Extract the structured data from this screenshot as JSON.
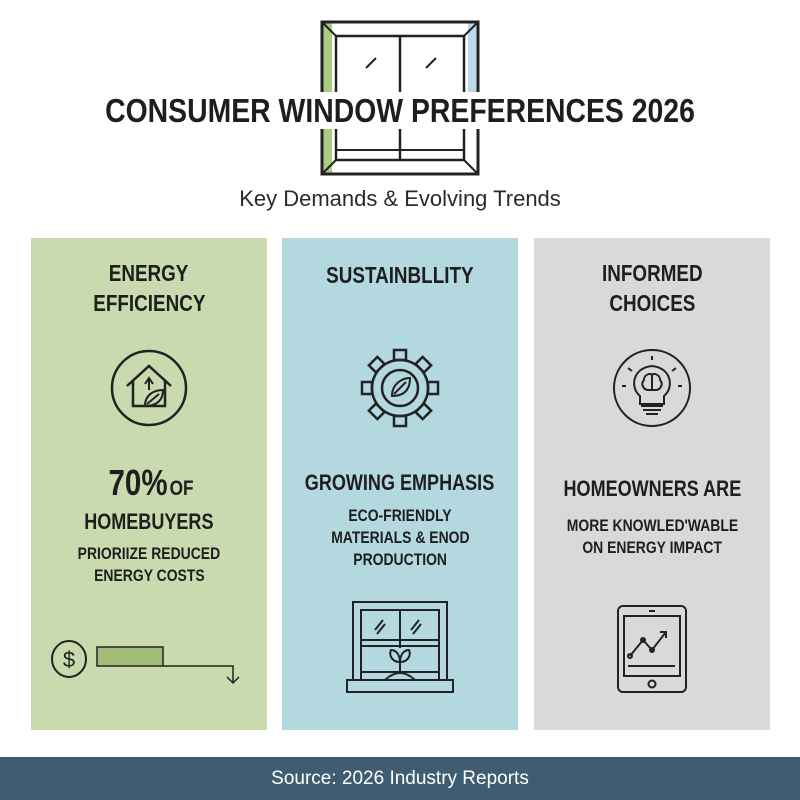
{
  "header": {
    "title": "CONSUMER WINDOW PREFERENCES 2026",
    "subtitle": "Key Demands & Evolving Trends"
  },
  "panels": [
    {
      "heading_lines": [
        "ENERGY",
        "EFFICIENCY"
      ],
      "icon": "house-leaf-icon",
      "stat": "70%",
      "stat_suffix": "OF",
      "line1": "HOMEBUYERS",
      "body_lines": [
        "PRIORIIZE REDUCED",
        "ENERGY COSTS"
      ],
      "bottom_icon": "dollar-cost-down-icon",
      "color": "#c9daae"
    },
    {
      "heading_lines": [
        "SUSTAINBLLITY"
      ],
      "icon": "gear-leaf-icon",
      "line1": "GROWING EMPHASIS",
      "body_lines": [
        "ECO-FRIENDLY",
        "MATERIALS & ENOD",
        "PRODUCTION"
      ],
      "bottom_icon": "window-plant-icon",
      "color": "#b3d8df"
    },
    {
      "heading_lines": [
        "INFORMED",
        "CHOICES"
      ],
      "icon": "lightbulb-brain-icon",
      "line1": "HOMEOWNERS ARE",
      "body_lines": [
        "MORE KNOWLED'WABLE",
        "ON ENERGY IMPACT"
      ],
      "bottom_icon": "tablet-chart-icon",
      "color": "#d9d9d9"
    }
  ],
  "footer": {
    "source": "Source: 2026 Industry Reports",
    "color": "#3f5d70"
  }
}
